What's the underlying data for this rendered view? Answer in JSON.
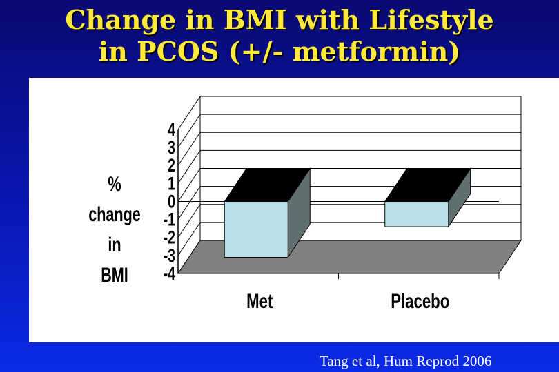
{
  "slide": {
    "title_line1": "Change in BMI with Lifestyle",
    "title_line2": "in PCOS (+/- metformin)",
    "citation": "Tang et al, Hum Reprod 2006"
  },
  "chart_data": {
    "type": "bar",
    "style": "3d",
    "categories": [
      "Met",
      "Placebo"
    ],
    "values": [
      -3.1,
      -1.4
    ],
    "ylabel_line1": "% change in",
    "ylabel_line2": "BMI",
    "ylim": [
      -4,
      4
    ],
    "yticks": [
      "4",
      "3",
      "2",
      "1",
      "0",
      "-1",
      "-2",
      "-3",
      "-4"
    ],
    "grid": true,
    "colors": {
      "bar_front": "#b9e0e8",
      "bar_top": "#000000",
      "bar_side": "#607070",
      "floor": "#808080"
    }
  }
}
